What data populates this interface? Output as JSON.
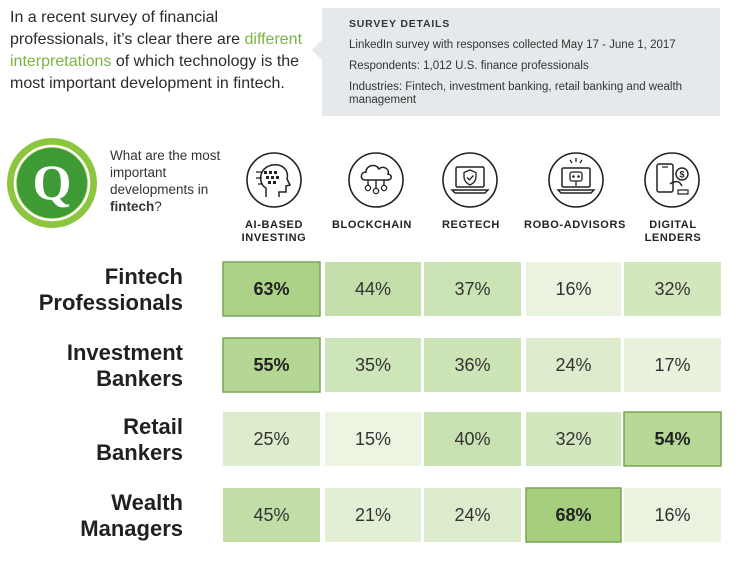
{
  "intro": {
    "part1": "In a recent survey of financial professionals, it’s clear there are ",
    "highlight": "different interpretations",
    "part2": " of which technology is the most important development in fintech."
  },
  "survey": {
    "title": "SURVEY DETAILS",
    "line1": "LinkedIn survey with responses collected May 17 - June 1, 2017",
    "line2": "Respondents: 1,012 U.S. finance professionals",
    "line3": "Industries: Fintech, investment banking, retail banking and wealth management"
  },
  "q_letter": "Q",
  "question": {
    "text": "What are the most important developments in ",
    "bold": "fintech",
    "end": "?"
  },
  "chart_data": {
    "type": "table",
    "columns": [
      "AI-BASED INVESTING",
      "BLOCKCHAIN",
      "REGTECH",
      "ROBO-ADVISORS",
      "DIGITAL LENDERS"
    ],
    "rows": [
      {
        "name": "Fintech Professionals",
        "values": [
          63,
          44,
          37,
          16,
          32
        ],
        "labels": [
          "63%",
          "44%",
          "37%",
          "16%",
          "32%"
        ]
      },
      {
        "name": "Investment Bankers",
        "values": [
          55,
          35,
          36,
          24,
          17
        ],
        "labels": [
          "55%",
          "35%",
          "36%",
          "24%",
          "17%"
        ]
      },
      {
        "name": "Retail Bankers",
        "values": [
          25,
          15,
          40,
          32,
          54
        ],
        "labels": [
          "25%",
          "15%",
          "40%",
          "32%",
          "54%"
        ]
      },
      {
        "name": "Wealth Managers",
        "values": [
          45,
          21,
          24,
          68,
          16
        ],
        "labels": [
          "45%",
          "21%",
          "24%",
          "68%",
          "16%"
        ]
      }
    ],
    "highlight_color": "#a5cf7f",
    "low_color": "#ecf4e2"
  },
  "columns": [
    {
      "line1": "AI-BASED",
      "line2": "INVESTING",
      "icon": "ai-head-icon"
    },
    {
      "line1": "BLOCKCHAIN",
      "line2": "",
      "icon": "cloud-network-icon"
    },
    {
      "line1": "REGTECH",
      "line2": "",
      "icon": "laptop-shield-icon"
    },
    {
      "line1": "ROBO-ADVISORS",
      "line2": "",
      "icon": "robot-laptop-icon"
    },
    {
      "line1": "DIGITAL",
      "line2": "LENDERS",
      "icon": "phone-money-icon"
    }
  ],
  "rows": [
    {
      "line1": "Fintech",
      "line2": "Professionals"
    },
    {
      "line1": "Investment",
      "line2": "Bankers"
    },
    {
      "line1": "Retail",
      "line2": "Bankers"
    },
    {
      "line1": "Wealth",
      "line2": "Managers"
    }
  ]
}
